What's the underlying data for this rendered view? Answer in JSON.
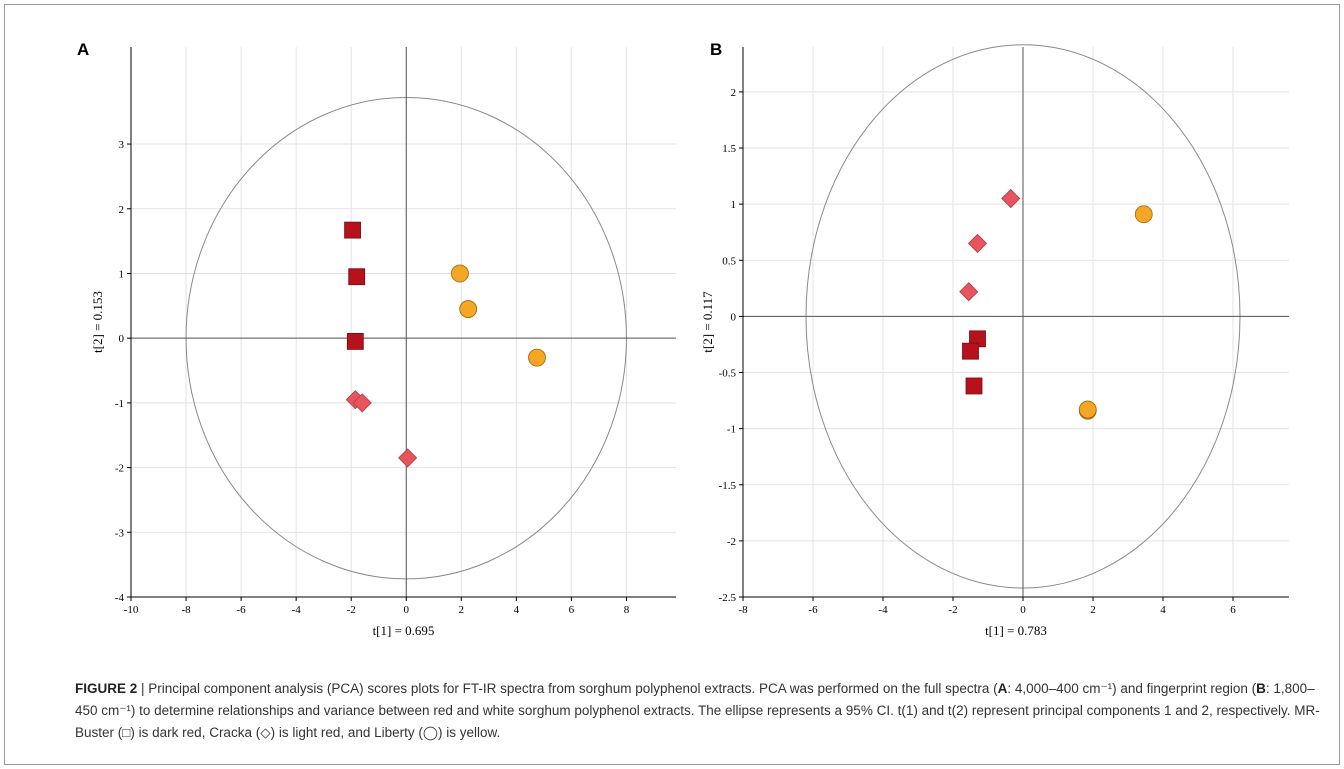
{
  "panels": [
    {
      "letter": "A"
    },
    {
      "letter": "B"
    }
  ],
  "chart_data": [
    {
      "type": "scatter",
      "panel": "A",
      "xlabel": "t[1] = 0.695",
      "ylabel": "t[2] = 0.153",
      "xlim": [
        -10,
        9.8
      ],
      "ylim": [
        -4,
        4.5
      ],
      "xticks": [
        -10,
        -8,
        -6,
        -4,
        -2,
        0,
        2,
        4,
        6,
        8
      ],
      "yticks": [
        -4,
        -3,
        -2,
        -1,
        0,
        1,
        2,
        3
      ],
      "grid": true,
      "ellipse": {
        "cx": 0,
        "cy": 0,
        "rx": 8.0,
        "ry": 3.72
      },
      "series": [
        {
          "name": "MR-Buster",
          "marker": "square",
          "color": "#b5121b",
          "points": [
            [
              -1.95,
              1.67
            ],
            [
              -1.8,
              0.95
            ],
            [
              -1.85,
              -0.05
            ]
          ]
        },
        {
          "name": "Cracka",
          "marker": "diamond",
          "color": "#e8545d",
          "points": [
            [
              -1.85,
              -0.95
            ],
            [
              -1.6,
              -1.0
            ],
            [
              0.05,
              -1.85
            ]
          ]
        },
        {
          "name": "Liberty",
          "marker": "circle",
          "color": "#f5a623",
          "points": [
            [
              1.95,
              1.0
            ],
            [
              2.25,
              0.45
            ],
            [
              4.75,
              -0.3
            ]
          ]
        }
      ]
    },
    {
      "type": "scatter",
      "panel": "B",
      "xlabel": "t[1] = 0.783",
      "ylabel": "t[2] = 0.117",
      "xlim": [
        -8,
        7.6
      ],
      "ylim": [
        -2.5,
        2.4
      ],
      "xticks": [
        -8,
        -6,
        -4,
        -2,
        0,
        2,
        4,
        6
      ],
      "yticks": [
        -2.5,
        -2,
        -1.5,
        -1,
        -0.5,
        0,
        0.5,
        1,
        1.5,
        2
      ],
      "grid": true,
      "ellipse": {
        "cx": 0,
        "cy": 0,
        "rx": 6.2,
        "ry": 2.42
      },
      "series": [
        {
          "name": "MR-Buster",
          "marker": "square",
          "color": "#b5121b",
          "points": [
            [
              -1.3,
              -0.2
            ],
            [
              -1.5,
              -0.31
            ],
            [
              -1.4,
              -0.62
            ]
          ]
        },
        {
          "name": "Cracka",
          "marker": "diamond",
          "color": "#e8545d",
          "points": [
            [
              -0.35,
              1.05
            ],
            [
              -1.3,
              0.65
            ],
            [
              -1.55,
              0.22
            ]
          ]
        },
        {
          "name": "Liberty",
          "marker": "circle",
          "color": "#f5a623",
          "points": [
            [
              3.45,
              0.91
            ],
            [
              1.85,
              -0.84
            ],
            [
              1.85,
              -0.83
            ]
          ]
        }
      ]
    }
  ],
  "caption": {
    "figure_label": "FIGURE 2",
    "separator": " | ",
    "s1": "Principal component analysis (PCA) scores plots for FT-IR spectra from sorghum polyphenol extracts. PCA was performed on the full spectra (",
    "a_letter": "A",
    "a_range": ": 4,000–400 cm⁻¹) and fingerprint region (",
    "b_letter": "B",
    "b_range": ": 1,800–450 cm⁻¹) to determine relationships and variance between red and white sorghum polyphenol extracts. The ellipse represents a 95% CI. t(1) and t(2) represent principal components 1 and 2, respectively. MR-Buster (□) is dark red, Cracka (◇) is light red, and Liberty (◯) is yellow."
  }
}
